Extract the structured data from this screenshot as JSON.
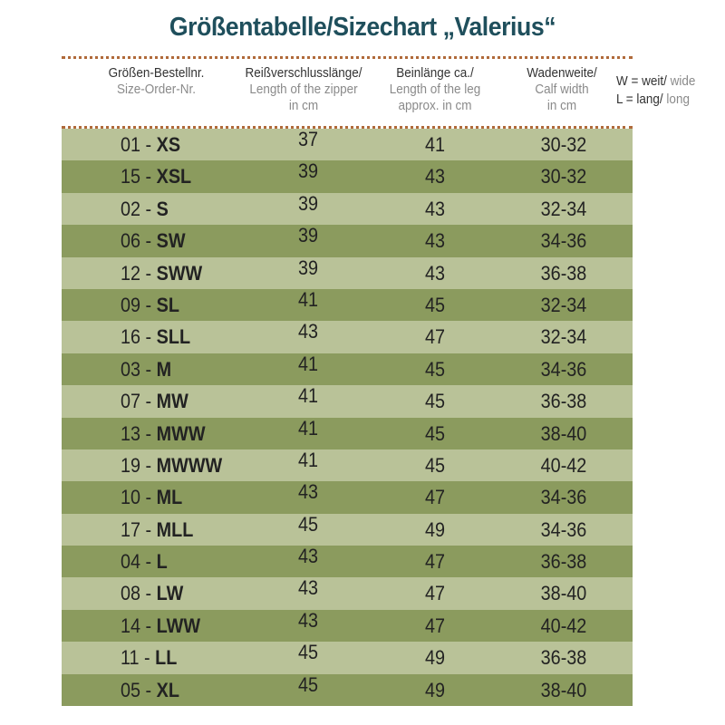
{
  "title": "Größentabelle/Sizechart „Valerius“",
  "headers": [
    {
      "de": "Größen-Bestellnr.",
      "en": "Size-Order-Nr.",
      "en2": ""
    },
    {
      "de": "Reißverschlusslänge/",
      "en": "Length of the zipper",
      "en2": "in cm"
    },
    {
      "de": "Beinlänge ca./",
      "en": "Length of the leg",
      "en2": "approx. in cm"
    },
    {
      "de": "Wadenweite/",
      "en": "Calf width",
      "en2": "in cm"
    }
  ],
  "legend": {
    "w_de": "W = weit/",
    "w_en": "wide",
    "l_de": "L = lang/",
    "l_en": "long"
  },
  "rows": [
    {
      "code": "01 -",
      "size": "XS",
      "zipper": "37",
      "leg": "41",
      "calf": "30-32"
    },
    {
      "code": "15 -",
      "size": "XSL",
      "zipper": "39",
      "leg": "43",
      "calf": "30-32"
    },
    {
      "code": "02 -",
      "size": "S",
      "zipper": "39",
      "leg": "43",
      "calf": "32-34"
    },
    {
      "code": "06 -",
      "size": "SW",
      "zipper": "39",
      "leg": "43",
      "calf": "34-36"
    },
    {
      "code": "12 -",
      "size": "SWW",
      "zipper": "39",
      "leg": "43",
      "calf": "36-38"
    },
    {
      "code": "09 -",
      "size": "SL",
      "zipper": "41",
      "leg": "45",
      "calf": "32-34"
    },
    {
      "code": "16 -",
      "size": "SLL",
      "zipper": "43",
      "leg": "47",
      "calf": "32-34"
    },
    {
      "code": "03 -",
      "size": "M",
      "zipper": "41",
      "leg": "45",
      "calf": "34-36"
    },
    {
      "code": "07 -",
      "size": "MW",
      "zipper": "41",
      "leg": "45",
      "calf": "36-38"
    },
    {
      "code": "13 -",
      "size": "MWW",
      "zipper": "41",
      "leg": "45",
      "calf": "38-40"
    },
    {
      "code": "19 -",
      "size": "MWWW",
      "zipper": "41",
      "leg": "45",
      "calf": "40-42"
    },
    {
      "code": "10 -",
      "size": "ML",
      "zipper": "43",
      "leg": "47",
      "calf": "34-36"
    },
    {
      "code": "17 -",
      "size": "MLL",
      "zipper": "45",
      "leg": "49",
      "calf": "34-36"
    },
    {
      "code": "04 -",
      "size": "L",
      "zipper": "43",
      "leg": "47",
      "calf": "36-38"
    },
    {
      "code": "08 -",
      "size": "LW",
      "zipper": "43",
      "leg": "47",
      "calf": "38-40"
    },
    {
      "code": "14 -",
      "size": "LWW",
      "zipper": "43",
      "leg": "47",
      "calf": "40-42"
    },
    {
      "code": "11 -",
      "size": "LL",
      "zipper": "45",
      "leg": "49",
      "calf": "36-38"
    },
    {
      "code": "05 -",
      "size": "XL",
      "zipper": "45",
      "leg": "49",
      "calf": "38-40"
    }
  ],
  "colors": {
    "title": "#1f4f5c",
    "row_light": "#b9c298",
    "row_dark": "#8b9b5e",
    "dots": "#b06a3a"
  }
}
